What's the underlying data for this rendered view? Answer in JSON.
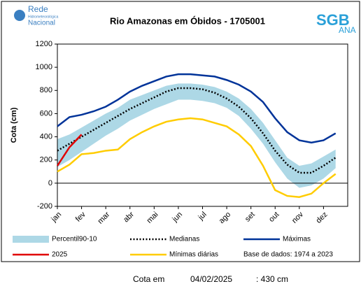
{
  "logos": {
    "rede": "Rede",
    "hidro": "Hidrometeorológica",
    "nacional": "Nacional",
    "sgb": "SGB",
    "ana": "ANA"
  },
  "chart_data": {
    "type": "line",
    "title": "Rio Amazonas em Óbidos - 1705001",
    "y_label": "Cota (cm)",
    "categories": [
      "jan",
      null,
      "fev",
      null,
      "mar",
      null,
      "abr",
      null,
      "mai",
      null,
      "jun",
      null,
      "jul",
      null,
      "ago",
      null,
      "set",
      null,
      "out",
      null,
      "nov",
      null,
      "dez",
      null
    ],
    "ylim": [
      -200,
      1200
    ],
    "yticks": [
      -200,
      0,
      200,
      400,
      600,
      800,
      1000,
      1200
    ],
    "band": {
      "name": "Percentil90-10",
      "color": "#add8e6",
      "upper": [
        380,
        420,
        480,
        540,
        600,
        650,
        720,
        760,
        800,
        840,
        860,
        860,
        850,
        830,
        790,
        730,
        640,
        520,
        370,
        220,
        150,
        170,
        230,
        290
      ],
      "lower": [
        140,
        200,
        270,
        340,
        410,
        470,
        540,
        590,
        640,
        680,
        720,
        720,
        710,
        690,
        650,
        580,
        470,
        340,
        180,
        40,
        -40,
        -20,
        40,
        130
      ]
    },
    "series": [
      {
        "name": "Medianas",
        "color": "#000000",
        "dash": true,
        "values": [
          280,
          340,
          400,
          460,
          520,
          580,
          640,
          690,
          740,
          790,
          820,
          820,
          810,
          780,
          730,
          660,
          560,
          430,
          280,
          160,
          90,
          90,
          150,
          220
        ]
      },
      {
        "name": "Máximas",
        "color": "#003399",
        "values": [
          490,
          570,
          590,
          620,
          660,
          720,
          790,
          840,
          880,
          920,
          940,
          940,
          930,
          920,
          890,
          850,
          790,
          700,
          560,
          440,
          370,
          350,
          370,
          430
        ]
      },
      {
        "name": "2025",
        "color": "#e00000",
        "values": [
          150,
          310,
          420,
          null,
          null,
          null,
          null,
          null,
          null,
          null,
          null,
          null,
          null,
          null,
          null,
          null,
          null,
          null,
          null,
          null,
          null,
          null,
          null,
          null
        ]
      },
      {
        "name": "Mínimas diárias",
        "color": "#ffcc00",
        "values": [
          100,
          160,
          250,
          260,
          280,
          290,
          380,
          440,
          490,
          530,
          550,
          560,
          550,
          520,
          490,
          420,
          320,
          150,
          -60,
          -110,
          -120,
          -90,
          0,
          80
        ]
      }
    ],
    "note": "Base de dados: 1974 a 2023",
    "footer": {
      "label": "Cota em",
      "date": "04/02/2025",
      "value": ": 430 cm"
    }
  }
}
